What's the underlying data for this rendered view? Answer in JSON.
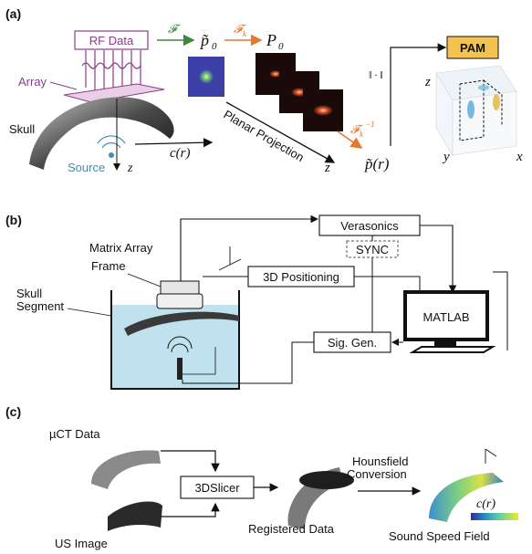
{
  "panels": {
    "a": {
      "label": "(a)",
      "rf_data": "RF Data",
      "array": "Array",
      "skull": "Skull",
      "source": "Source",
      "z_axis": "z",
      "op_f": "𝓕",
      "op_fk": "𝓕",
      "op_fk_sub": "k",
      "op_fk_inv": "𝓕",
      "op_fk_inv_sub": "k",
      "op_fk_inv_sup": "−1",
      "p0_tilde": "p̃",
      "p0_tilde_sub": "0",
      "P0": "P",
      "P0_sub": "0",
      "c_r": "c(r)",
      "planar_projection": "Planar Projection",
      "z_stack": "z",
      "p_tilde_r": "p̃(r)",
      "norm": "‖ · ‖",
      "pam": "PAM",
      "axis_z": "z",
      "axis_y": "y",
      "axis_x": "x"
    },
    "b": {
      "label": "(b)",
      "verasonics": "Verasonics",
      "sync": "SYNC",
      "matrix_array": "Matrix Array",
      "frame": "Frame",
      "positioning": "3D Positioning",
      "skull_segment_1": "Skull",
      "skull_segment_2": "Segment",
      "matlab": "MATLAB",
      "sig_gen": "Sig. Gen."
    },
    "c": {
      "label": "(c)",
      "uct": "µCT Data",
      "us_image": "US Image",
      "slicer": "3DSlicer",
      "registered": "Registered Data",
      "hounsfield_1": "Hounsfield",
      "hounsfield_2": "Conversion",
      "c_r": "c(r)",
      "sound_speed": "Sound Speed Field"
    }
  },
  "colors": {
    "rf_purple": "#8e3a8a",
    "green_arrow": "#3b8a3b",
    "orange_arrow": "#e8782a",
    "source_blue": "#3a8fb7",
    "pam_fill": "#f3c24f",
    "water": "#bfe2ee",
    "sync_dash": "#555555"
  }
}
